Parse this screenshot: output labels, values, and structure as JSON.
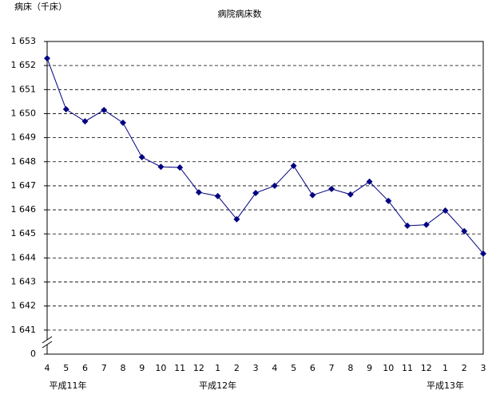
{
  "chart_data": {
    "type": "line",
    "title": "病院病床数",
    "y_label": "病床（千床）",
    "categories": [
      "4",
      "5",
      "6",
      "7",
      "8",
      "9",
      "10",
      "11",
      "12",
      "1",
      "2",
      "3",
      "4",
      "5",
      "6",
      "7",
      "8",
      "9",
      "10",
      "11",
      "12",
      "1",
      "2",
      "3"
    ],
    "x_groups": [
      {
        "label": "平成11年",
        "start": 0
      },
      {
        "label": "平成12年",
        "start": 9
      },
      {
        "label": "平成13年",
        "start": 21
      }
    ],
    "series": [
      {
        "color": "#000080",
        "values": [
          1652.3,
          1650.18,
          1649.68,
          1650.15,
          1649.62,
          1648.19,
          1647.79,
          1647.76,
          1646.73,
          1646.57,
          1645.61,
          1646.7,
          1647.0,
          1647.83,
          1646.61,
          1646.87,
          1646.64,
          1647.17,
          1646.37,
          1645.34,
          1645.38,
          1645.97,
          1645.11,
          1644.18
        ]
      }
    ],
    "ylim": [
      0,
      1653
    ],
    "axis_break": true,
    "grid": true,
    "yticks": [
      0,
      {
        "value": 1641,
        "label": "1 641"
      },
      {
        "value": 1642,
        "label": "1 642"
      },
      {
        "value": 1643,
        "label": "1 643"
      },
      {
        "value": 1644,
        "label": "1 644"
      },
      {
        "value": 1645,
        "label": "1 645"
      },
      {
        "value": 1646,
        "label": "1 646"
      },
      {
        "value": 1647,
        "label": "1 647"
      },
      {
        "value": 1648,
        "label": "1 648"
      },
      {
        "value": 1649,
        "label": "1 649"
      },
      {
        "value": 1650,
        "label": "1 650"
      },
      {
        "value": 1651,
        "label": "1 651"
      },
      {
        "value": 1652,
        "label": "1 652"
      },
      {
        "value": 1653,
        "label": "1 653"
      }
    ]
  }
}
